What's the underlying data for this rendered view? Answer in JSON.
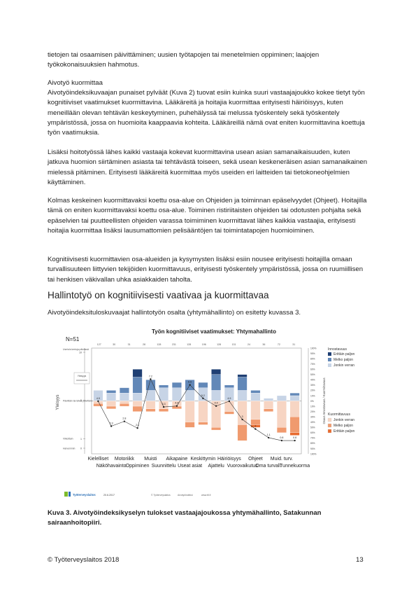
{
  "paragraphs": {
    "p0": "tietojen tai osaamisen päivittäminen; uusien työtapojen tai menetelmien oppiminen; laajojen työkokonaisuuksien hahmotus.",
    "section1_title": "Aivotyö kuormittaa",
    "p1": "Aivotyöindeksikuvaajan punaiset pylväät (Kuva 2) tuovat esiin kuinka suuri vastaajajoukko kokee tietyt työn kognitiiviset vaatimukset kuormittavina. Lääkäreitä ja hoitajia kuormittaa erityisesti häiriöisyys, kuten meneillään olevan tehtävän keskeytyminen, puhehälyssä tai melussa työskentely sekä työskentely ympäristössä, jossa on huomioita kaappaavia kohteita. Lääkäreillä nämä ovat eniten kuormittavina koettuja työn vaatimuksia.",
    "p2": "Lisäksi hoitotyössä lähes kaikki vastaaja kokevat kuormittavina usean asian samanaikaisuuden, kuten jatkuva huomion siirtäminen asiasta tai tehtävästä toiseen, sekä usean keskeneräisen asian samanaikainen mielessä pitäminen. Erityisesti lääkäreitä kuormittaa myös useiden eri laitteiden tai tietokoneohjelmien käyttäminen.",
    "p3": "Kolmas keskeinen kuormittavaksi koettu osa-alue on Ohjeiden ja toiminnan epäselvyydet (Ohjeet). Hoitajilla tämä on eniten kuormittavaksi koettu osa-alue. Toiminen ristiriitaisten ohjeiden tai odotusten pohjalta sekä epäselvien tai puutteellisten ohjeiden varassa toimiminen kuormittavat lähes kaikkia vastaajia, erityisesti hoitajia kuormittaa lisäksi lausumattomien pelisääntöjen tai toimintatapojen huomioiminen.",
    "p4": "Kognitiivisesti kuormittavien osa-alueiden ja kysymysten lisäksi esiin nousee erityisesti hoitajilla omaan turvallisuuteen liittyvien tekijöiden kuormittavuus, erityisesti työskentely ympäristössä, jossa on ruumiillisen tai henkisen väkivallan uhka asiakkaiden taholta.",
    "section2_title": "Hallintotyö on kognitiivisesti vaativaa ja kuormittavaa",
    "p5": "Aivotyöindeksituloskuvaajat hallintotyön osalta (yhtymähallinto) on esitetty kuvassa 3.",
    "caption": "Kuva 3. Aivotyöindeksikyselyn tulokset vastaajajoukossa yhtymähallinto, Satakunnan sairaanhoitopiiri.",
    "footer_left": "© Työterveyslaitos 2018",
    "footer_right": "13"
  },
  "chart_data": {
    "type": "bar",
    "title": "Työn kognitiiviset vaatimukset: Yhtymahallinto",
    "n_label": "N=51",
    "top_counts": [
      "127",
      "30",
      "31",
      "28",
      "128",
      "231",
      "128",
      "196",
      "128",
      "131",
      "24",
      "36",
      "72",
      "31"
    ],
    "ylabel": "Yleisyys",
    "yticks": [
      {
        "value": 10,
        "label": "10"
      },
      {
        "value": 5,
        "label": "5"
      },
      {
        "value": 1,
        "label": "1"
      },
      {
        "value": 0,
        "label": "0"
      }
    ],
    "ytick_text": {
      "top": "Usein/a kertoja päivässä",
      "yearly": "Yleisyys",
      "mid": "Päivittäin tai lähes päivittäin",
      "low": "Viikoittain",
      "zero": "Harvemmin"
    },
    "right_axis_top": "Osuus Innostavuus / Kuormittavuus",
    "pct_ticks": [
      "100%",
      "90%",
      "80%",
      "70%",
      "60%",
      "50%",
      "40%",
      "30%",
      "20%",
      "10%",
      "0%",
      "10%",
      "20%",
      "30%",
      "40%",
      "50%",
      "60%",
      "70%",
      "80%",
      "90%",
      "100%"
    ],
    "categories": [
      "Kielelliset",
      "Näköhavainto",
      "Motoriikka",
      "Oppiminen",
      "Muisti",
      "Suunnittelu",
      "Aikapaine",
      "Useat asiat",
      "Keskittyminen",
      "Ajattelu",
      "Häiriöisyys",
      "Vuorovaikutus",
      "Ohjeet",
      "Oma turvall.",
      "Muid. turv.",
      "Tunnekuorma"
    ],
    "x_labels_row1": [
      "Kielelliset",
      "Motoriikk",
      "Muisti",
      "Aikapaine",
      "Keskittymin",
      "Häiriöisyys",
      "Ohjeet",
      "Muid. turv."
    ],
    "x_labels_row2": [
      "Näköhavainto",
      "Oppiminen",
      "Suunnittelu",
      "Useat asiat",
      "Ajattelu",
      "Vuorovaikutus",
      "Oma turvall.",
      "Tunnekuorma"
    ],
    "innostavuus": {
      "very": [
        0,
        0,
        0,
        15,
        0,
        0,
        0,
        0,
        0,
        10,
        0,
        5,
        0,
        0,
        0,
        0
      ],
      "quite": [
        0,
        5,
        10,
        30,
        20,
        5,
        10,
        20,
        10,
        30,
        5,
        25,
        5,
        0,
        0,
        5
      ],
      "somewhat": [
        20,
        15,
        15,
        15,
        20,
        25,
        25,
        20,
        25,
        20,
        25,
        20,
        15,
        5,
        10,
        10
      ]
    },
    "kuormittavuus": {
      "somewhat": [
        5,
        10,
        5,
        10,
        15,
        15,
        10,
        40,
        40,
        50,
        20,
        45,
        35,
        15,
        50,
        30
      ],
      "quite": [
        5,
        5,
        5,
        10,
        5,
        5,
        5,
        10,
        5,
        5,
        5,
        30,
        10,
        5,
        10,
        30
      ],
      "very": [
        0,
        0,
        0,
        0,
        0,
        0,
        0,
        0,
        0,
        0,
        0,
        0,
        5,
        0,
        0,
        5
      ]
    },
    "frequency_line": [
      4.9,
      2.3,
      2.8,
      2.1,
      7.2,
      4.3,
      4.4,
      6.6,
      5.2,
      4.4,
      4.9,
      3.0,
      2.0,
      1.1,
      0.8,
      0.8
    ],
    "frequency_labels": [
      "4.9",
      "2.3",
      "2.8",
      "2.1",
      "7.2",
      "4.3",
      "4.4",
      "6.6",
      "5.2",
      "4.4",
      "4.9",
      "3",
      "2",
      "1.1",
      "0.8",
      "0.8"
    ],
    "legend": {
      "group1_title": "Innostavuus",
      "group1": [
        "Erittäin paljon",
        "Melko paljon",
        "Jonkin verran"
      ],
      "group2_title": "Kuormittavuus",
      "group2": [
        "Jonkin verran",
        "Melko paljon",
        "Erittäin paljon"
      ],
      "line_label": "Yleisyys"
    },
    "colors": {
      "very_blue": "#1f3f73",
      "quite_blue": "#6288b8",
      "some_blue": "#c7d4e6",
      "some_orange": "#f7d5c3",
      "quite_orange": "#f09a6e",
      "very_orange": "#e86b2f"
    },
    "footer": {
      "brand": "Työterveyslaitos",
      "date": "20.6.2017",
      "copyright": "© Työterveyslaitos",
      "site": "Aivotyöindeksi",
      "url": "www.ttl.fi"
    }
  }
}
